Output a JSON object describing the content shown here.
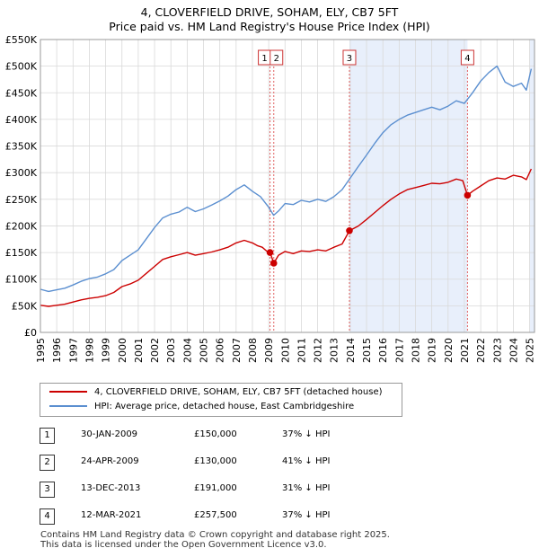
{
  "title_line1": "4, CLOVERFIELD DRIVE, SOHAM, ELY, CB7 5FT",
  "title_line2": "Price paid vs. HM Land Registry's House Price Index (HPI)",
  "chart_data": {
    "type": "line",
    "title": "4, CLOVERFIELD DRIVE, SOHAM, ELY, CB7 5FT",
    "subtitle": "Price paid vs. HM Land Registry's House Price Index (HPI)",
    "xlabel": "",
    "ylabel": "",
    "xlim": [
      1995,
      2025.3
    ],
    "ylim": [
      0,
      550000
    ],
    "y_ticks": [
      0,
      50000,
      100000,
      150000,
      200000,
      250000,
      300000,
      350000,
      400000,
      450000,
      500000,
      550000
    ],
    "y_tick_labels": [
      "£0",
      "£50K",
      "£100K",
      "£150K",
      "£200K",
      "£250K",
      "£300K",
      "£350K",
      "£400K",
      "£450K",
      "£500K",
      "£550K"
    ],
    "x_ticks": [
      1995,
      1996,
      1997,
      1998,
      1999,
      2000,
      2001,
      2002,
      2003,
      2004,
      2005,
      2006,
      2007,
      2008,
      2009,
      2010,
      2011,
      2012,
      2013,
      2014,
      2015,
      2016,
      2017,
      2018,
      2019,
      2020,
      2021,
      2022,
      2023,
      2024,
      2025
    ],
    "x_tick_labels": [
      "1995",
      "1996",
      "1997",
      "1998",
      "1999",
      "2000",
      "2001",
      "2002",
      "2003",
      "2004",
      "2005",
      "2006",
      "2007",
      "2008",
      "2009",
      "2010",
      "2011",
      "2012",
      "2013",
      "2014",
      "2015",
      "2016",
      "2017",
      "2018",
      "2019",
      "2020",
      "2021",
      "2022",
      "2023",
      "2024",
      "2025"
    ],
    "grid": true,
    "legend_position": "below",
    "series": [
      {
        "name": "4, CLOVERFIELD DRIVE, SOHAM, ELY, CB7 5FT (detached house)",
        "color": "#cc0000",
        "x": [
          1995,
          1995.5,
          1996,
          1996.5,
          1997,
          1997.5,
          1998,
          1998.5,
          1999,
          1999.5,
          2000,
          2000.5,
          2001,
          2001.5,
          2002,
          2002.5,
          2003,
          2003.5,
          2004,
          2004.5,
          2005,
          2005.5,
          2006,
          2006.5,
          2007,
          2007.5,
          2008,
          2008.3,
          2008.6,
          2008.9,
          2009.08,
          2009.31,
          2009.6,
          2010,
          2010.5,
          2011,
          2011.5,
          2012,
          2012.5,
          2013,
          2013.5,
          2013.95,
          2014.5,
          2015,
          2015.5,
          2016,
          2016.5,
          2017,
          2017.5,
          2018,
          2018.5,
          2019,
          2019.5,
          2020,
          2020.5,
          2020.9,
          2021.19,
          2021.5,
          2022,
          2022.5,
          2023,
          2023.5,
          2024,
          2024.5,
          2024.8,
          2025.1
        ],
        "values": [
          51000,
          49000,
          51000,
          53000,
          57000,
          61000,
          64000,
          66000,
          69000,
          75000,
          86000,
          91000,
          98000,
          111000,
          124000,
          137000,
          142000,
          146000,
          150000,
          145000,
          148000,
          151000,
          155000,
          160000,
          168000,
          173000,
          168000,
          163000,
          160000,
          152000,
          150000,
          130000,
          145000,
          152000,
          148000,
          153000,
          152000,
          155000,
          153000,
          160000,
          166000,
          191000,
          200000,
          212000,
          225000,
          238000,
          250000,
          260000,
          268000,
          272000,
          276000,
          280000,
          279000,
          282000,
          288000,
          285000,
          257500,
          265000,
          275000,
          285000,
          290000,
          288000,
          295000,
          292000,
          287000,
          307000
        ]
      },
      {
        "name": "HPI: Average price, detached house, East Cambridgeshire",
        "color": "#5b8fd0",
        "x": [
          1995,
          1995.5,
          1996,
          1996.5,
          1997,
          1997.5,
          1998,
          1998.5,
          1999,
          1999.5,
          2000,
          2000.5,
          2001,
          2001.5,
          2002,
          2002.5,
          2003,
          2003.5,
          2004,
          2004.5,
          2005,
          2005.5,
          2006,
          2006.5,
          2007,
          2007.5,
          2008,
          2008.5,
          2009,
          2009.3,
          2009.6,
          2010,
          2010.5,
          2011,
          2011.5,
          2012,
          2012.5,
          2013,
          2013.5,
          2014,
          2014.5,
          2015,
          2015.5,
          2016,
          2016.5,
          2017,
          2017.5,
          2018,
          2018.5,
          2019,
          2019.5,
          2020,
          2020.5,
          2021,
          2021.5,
          2022,
          2022.5,
          2023,
          2023.5,
          2024,
          2024.5,
          2024.8,
          2025.1
        ],
        "values": [
          81000,
          77000,
          80000,
          83000,
          89000,
          96000,
          101000,
          104000,
          110000,
          118000,
          135000,
          145000,
          155000,
          176000,
          197000,
          215000,
          222000,
          226000,
          235000,
          227000,
          232000,
          239000,
          247000,
          256000,
          268000,
          277000,
          265000,
          255000,
          235000,
          220000,
          228000,
          242000,
          240000,
          248000,
          245000,
          250000,
          246000,
          255000,
          268000,
          290000,
          312000,
          333000,
          355000,
          375000,
          390000,
          400000,
          408000,
          413000,
          418000,
          423000,
          418000,
          425000,
          435000,
          430000,
          450000,
          472000,
          488000,
          500000,
          470000,
          462000,
          468000,
          455000,
          495000
        ]
      }
    ],
    "sale_markers": [
      {
        "x": 2009.08,
        "value": 150000
      },
      {
        "x": 2009.31,
        "value": 130000
      },
      {
        "x": 2013.95,
        "value": 191000
      },
      {
        "x": 2021.19,
        "value": 257500
      }
    ],
    "annotation_lines": [
      {
        "label": "1",
        "x": 2009.08
      },
      {
        "label": "2",
        "x": 2009.31
      },
      {
        "label": "3",
        "x": 2013.95
      },
      {
        "label": "4",
        "x": 2021.19
      }
    ],
    "shaded_regions": [
      {
        "from": 2013.95,
        "to": 2021.19,
        "color": "#e8effb"
      },
      {
        "from": 2025.0,
        "to": 2025.3,
        "color": "#e8effb"
      }
    ],
    "colors": {
      "red": "#cc0000",
      "blue": "#5b8fd0",
      "shade": "#e8effb",
      "dash": "#e06060"
    }
  },
  "legend": [
    {
      "label": "4, CLOVERFIELD DRIVE, SOHAM, ELY, CB7 5FT (detached house)",
      "color": "#cc0000"
    },
    {
      "label": "HPI: Average price, detached house, East Cambridgeshire",
      "color": "#5b8fd0"
    }
  ],
  "sales": [
    {
      "num": "1",
      "date": "30-JAN-2009",
      "price": "£150,000",
      "hpi": "37% ↓ HPI"
    },
    {
      "num": "2",
      "date": "24-APR-2009",
      "price": "£130,000",
      "hpi": "41% ↓ HPI"
    },
    {
      "num": "3",
      "date": "13-DEC-2013",
      "price": "£191,000",
      "hpi": "31% ↓ HPI"
    },
    {
      "num": "4",
      "date": "12-MAR-2021",
      "price": "£257,500",
      "hpi": "37% ↓ HPI"
    }
  ],
  "footer_line1": "Contains HM Land Registry data © Crown copyright and database right 2025.",
  "footer_line2": "This data is licensed under the Open Government Licence v3.0."
}
